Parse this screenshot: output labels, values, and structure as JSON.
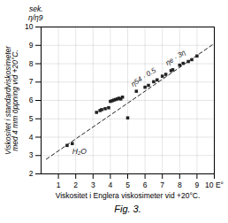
{
  "chart_data": {
    "type": "scatter",
    "title": "Fig. 3.",
    "xlabel": "Viskositet i Englera viskosimeter vid +20°C.",
    "ylabel": "Viskositet i standardviskosimeter\nmed 4 mm öppning vid +20°C.",
    "xlim": [
      0,
      10
    ],
    "ylim": [
      2,
      10
    ],
    "xticks": [
      1,
      2,
      3,
      4,
      5,
      6,
      7,
      8,
      9,
      {
        "value": 10,
        "label": "10 E°"
      }
    ],
    "yticks": [
      2,
      3,
      4,
      5,
      6,
      7,
      8,
      9,
      10
    ],
    "grid": true,
    "series": [
      {
        "type": "scatter",
        "marker": "square",
        "color": "#222222",
        "x": [
          1.5,
          1.8,
          3.2,
          3.4,
          3.5,
          3.7,
          3.9,
          4.0,
          4.1,
          4.2,
          4.3,
          4.4,
          4.5,
          4.6,
          4.7,
          5.0,
          5.5,
          6.0,
          6.2,
          6.5,
          6.7,
          7.0,
          7.2,
          7.5,
          7.6,
          8.0,
          8.2,
          8.5,
          8.7,
          9.0
        ],
        "values": [
          3.55,
          3.65,
          5.35,
          5.45,
          5.5,
          5.55,
          5.6,
          5.95,
          5.98,
          6.02,
          6.05,
          6.08,
          6.12,
          6.08,
          6.18,
          5.05,
          6.5,
          6.72,
          6.82,
          7.02,
          7.12,
          7.32,
          7.42,
          7.62,
          7.67,
          7.92,
          8.02,
          8.12,
          8.22,
          8.42
        ]
      },
      {
        "type": "line",
        "line_style": "dashed",
        "color": "#222222",
        "x": [
          0.3,
          10.0
        ],
        "values": [
          2.8,
          9.1
        ],
        "annotations": [
          {
            "text": "η54 · 0.5",
            "x": 5.3,
            "y": 6.75
          },
          {
            "text": "ηe · 3η",
            "x": 7.3,
            "y": 7.9
          }
        ]
      }
    ],
    "annotations": [
      {
        "text": "H₂O",
        "x": 1.8,
        "y": 3.38
      },
      {
        "text": "sek."
      },
      {
        "text": "η/η9"
      }
    ]
  }
}
